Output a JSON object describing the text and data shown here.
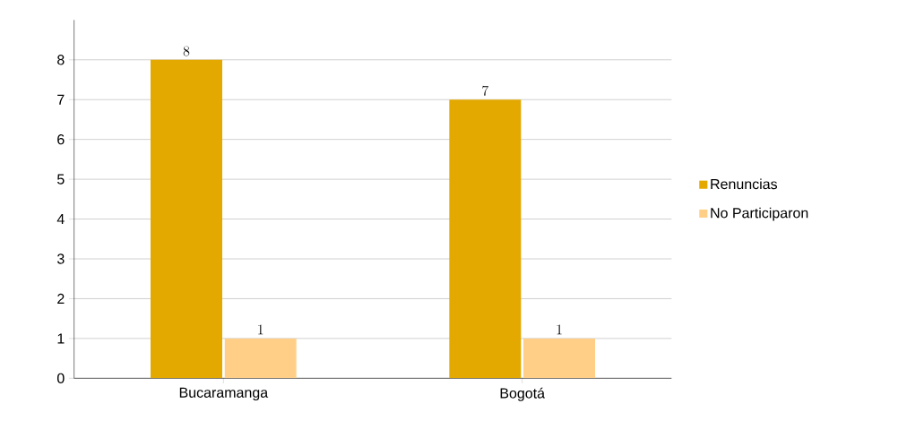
{
  "chart_data": {
    "type": "bar",
    "categories": [
      "Bucaramanga",
      "Bogotá"
    ],
    "series": [
      {
        "name": "Renuncias",
        "color": "#e3a900",
        "values": [
          8,
          7
        ]
      },
      {
        "name": "No Participaron",
        "color": "#ffcf87",
        "values": [
          1,
          1
        ]
      }
    ],
    "ylim": [
      0,
      9
    ],
    "yticks": [
      0,
      1,
      2,
      3,
      4,
      5,
      6,
      7,
      8
    ],
    "grid": "y",
    "legend": "right",
    "data_labels": true
  }
}
